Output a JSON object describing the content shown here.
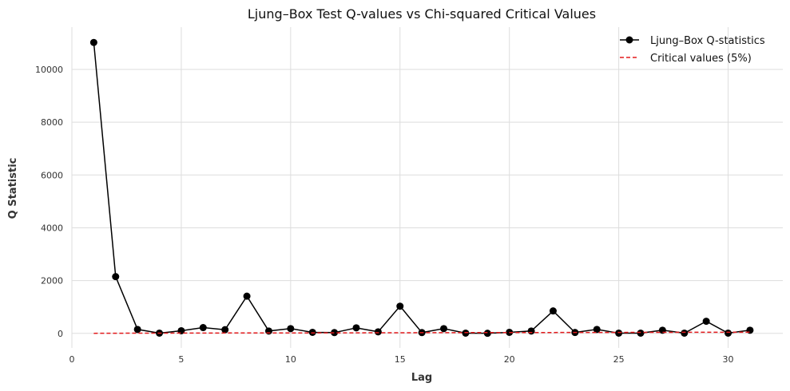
{
  "chart_data": {
    "type": "line",
    "title": "Ljung–Box Test Q-values vs Chi-squared Critical Values",
    "xlabel": "Lag",
    "ylabel": "Q Statistic",
    "xlim": [
      0,
      32.5
    ],
    "ylim": [
      -550,
      11600
    ],
    "xticks": [
      0,
      5,
      10,
      15,
      20,
      25,
      30
    ],
    "yticks": [
      0,
      2000,
      4000,
      6000,
      8000,
      10000
    ],
    "grid": true,
    "legend_position": "top-right",
    "x": [
      1,
      2,
      3,
      4,
      5,
      6,
      7,
      8,
      9,
      10,
      11,
      12,
      13,
      14,
      15,
      16,
      17,
      18,
      19,
      20,
      21,
      22,
      23,
      24,
      25,
      26,
      27,
      28,
      29,
      30,
      31
    ],
    "series": [
      {
        "name": "Ljung–Box Q-statistics",
        "color": "#000000",
        "style": "solid",
        "marker": "circle",
        "values": [
          11020,
          2150,
          150,
          10,
          100,
          220,
          140,
          1410,
          90,
          180,
          40,
          30,
          210,
          60,
          1030,
          30,
          180,
          10,
          5,
          40,
          90,
          850,
          35,
          150,
          10,
          10,
          120,
          10,
          460,
          10,
          120
        ]
      },
      {
        "name": "Critical values (5%)",
        "color": "#e31a1c",
        "style": "dashed",
        "marker": "none",
        "values": [
          3.84,
          5.99,
          7.81,
          9.49,
          11.07,
          12.59,
          14.07,
          15.51,
          16.92,
          18.31,
          19.68,
          21.03,
          22.36,
          23.68,
          25.0,
          26.3,
          27.59,
          28.87,
          30.14,
          31.41,
          32.67,
          33.92,
          35.17,
          36.42,
          37.65,
          38.89,
          40.11,
          41.34,
          42.56,
          43.77,
          44.99
        ]
      }
    ]
  }
}
